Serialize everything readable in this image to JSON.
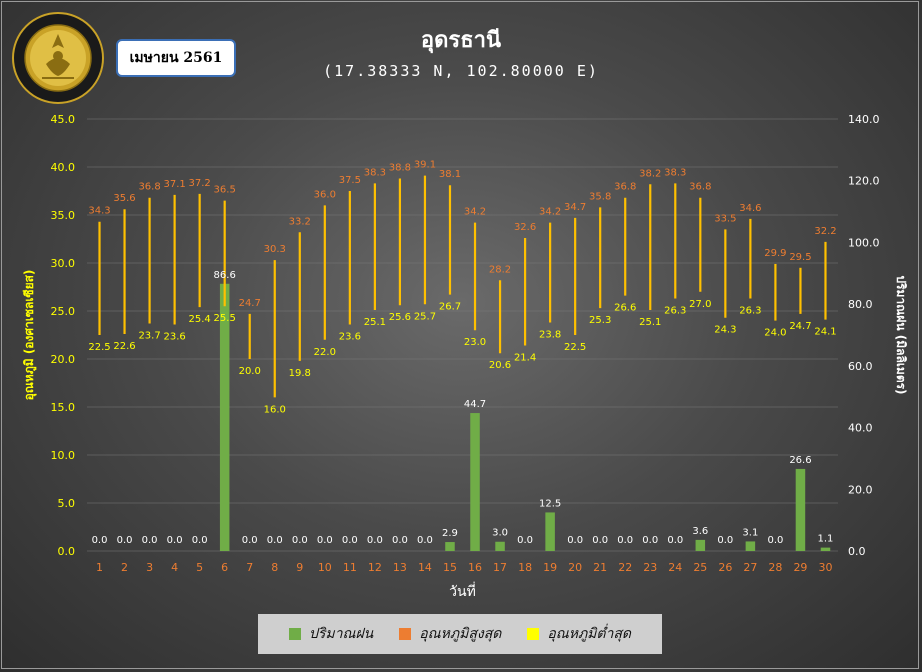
{
  "title": "อุดรธานี",
  "subtitle": "(17.38333 N, 102.80000 E)",
  "month_label": "เมษายน 2561",
  "logo_text": "กรมอุตุนิยมวิทยา METEOROLOGICAL DEPARTMENT",
  "legend": [
    {
      "label": "ปริมาณฝน",
      "color": "#70ad47"
    },
    {
      "label": "อุณหภูมิสูงสุด",
      "color": "#ed7d31"
    },
    {
      "label": "อุณหภูมิต่ำสุด",
      "color": "#ffff00"
    }
  ],
  "chart_data": {
    "type": "bar+range",
    "xlabel": "วันที่",
    "ylabel_left": "อุณหภูมิ (องศาเซลเซียส)",
    "ylabel_right": "ปริมาณฝน (มิลลิเมตร)",
    "ylim_left": [
      0,
      45
    ],
    "ylim_right": [
      0,
      140
    ],
    "yticks_left": [
      "0.0",
      "5.0",
      "10.0",
      "15.0",
      "20.0",
      "25.0",
      "30.0",
      "35.0",
      "40.0",
      "45.0"
    ],
    "yticks_right": [
      "0.0",
      "20.0",
      "40.0",
      "60.0",
      "80.0",
      "100.0",
      "120.0",
      "140.0"
    ],
    "categories": [
      "1",
      "2",
      "3",
      "4",
      "5",
      "6",
      "7",
      "8",
      "9",
      "10",
      "11",
      "12",
      "13",
      "14",
      "15",
      "16",
      "17",
      "18",
      "19",
      "20",
      "21",
      "22",
      "23",
      "24",
      "25",
      "26",
      "27",
      "28",
      "29",
      "30"
    ],
    "series": [
      {
        "name": "ปริมาณฝน",
        "axis": "right",
        "color": "#70ad47",
        "values": [
          0.0,
          0.0,
          0.0,
          0.0,
          0.0,
          86.6,
          0.0,
          0.0,
          0.0,
          0.0,
          0.0,
          0.0,
          0.0,
          0.0,
          2.9,
          44.7,
          3.0,
          0.0,
          12.5,
          0.0,
          0.0,
          0.0,
          0.0,
          0.0,
          3.6,
          0.0,
          3.1,
          0.0,
          26.6,
          1.1
        ],
        "labels": [
          "0.0",
          "0.0",
          "0.0",
          "0.0",
          "0.0",
          "86.6",
          "0.0",
          "0.0",
          "0.0",
          "0.0",
          "0.0",
          "0.0",
          "0.0",
          "0.0",
          "2.9",
          "44.7",
          "3.0",
          "0.0",
          "12.5",
          "0.0",
          "0.0",
          "0.0",
          "0.0",
          "0.0",
          "3.6",
          "0.0",
          "3.1",
          "0.0",
          "26.6",
          "1.1"
        ]
      },
      {
        "name": "อุณหภูมิสูงสุด",
        "axis": "left",
        "color": "#ed7d31",
        "values": [
          34.3,
          35.6,
          36.8,
          37.1,
          37.2,
          36.5,
          24.7,
          30.3,
          33.2,
          36.0,
          37.5,
          38.3,
          38.8,
          39.1,
          38.1,
          34.2,
          28.2,
          32.6,
          34.2,
          34.7,
          35.8,
          36.8,
          38.2,
          38.3,
          36.8,
          33.5,
          34.6,
          29.9,
          29.5,
          32.2
        ],
        "labels": [
          "34.3",
          "35.6",
          "36.8",
          "37.1",
          "37.2",
          "36.5",
          "24.7",
          "30.3",
          "33.2",
          "36.0",
          "37.5",
          "38.3",
          "38.8",
          "39.1",
          "38.1",
          "34.2",
          "28.2",
          "32.6",
          "34.2",
          "34.7",
          "35.8",
          "36.8",
          "38.2",
          "38.3",
          "36.8",
          "33.5",
          "34.6",
          "29.9",
          "29.5",
          "32.2"
        ]
      },
      {
        "name": "อุณหภูมิต่ำสุด",
        "axis": "left",
        "color": "#ffff00",
        "values": [
          22.5,
          22.6,
          23.7,
          23.6,
          25.4,
          25.5,
          20.0,
          16.0,
          19.8,
          22.0,
          23.6,
          25.1,
          25.6,
          25.7,
          26.7,
          23.0,
          20.6,
          21.4,
          23.8,
          22.5,
          25.3,
          26.6,
          25.1,
          26.3,
          27.0,
          24.3,
          26.3,
          24.0,
          24.7,
          24.1
        ],
        "labels": [
          "22.5",
          "22.6",
          "23.7",
          "23.6",
          "25.4",
          "25.5",
          "20.0",
          "16.0",
          "19.8",
          "22.0",
          "23.6",
          "25.1",
          "25.6",
          "25.7",
          "26.7",
          "23.0",
          "20.6",
          "21.4",
          "23.8",
          "22.5",
          "25.3",
          "26.6",
          "25.1",
          "26.3",
          "27.0",
          "24.3",
          "26.3",
          "24.0",
          "24.7",
          "24.1"
        ]
      }
    ]
  }
}
